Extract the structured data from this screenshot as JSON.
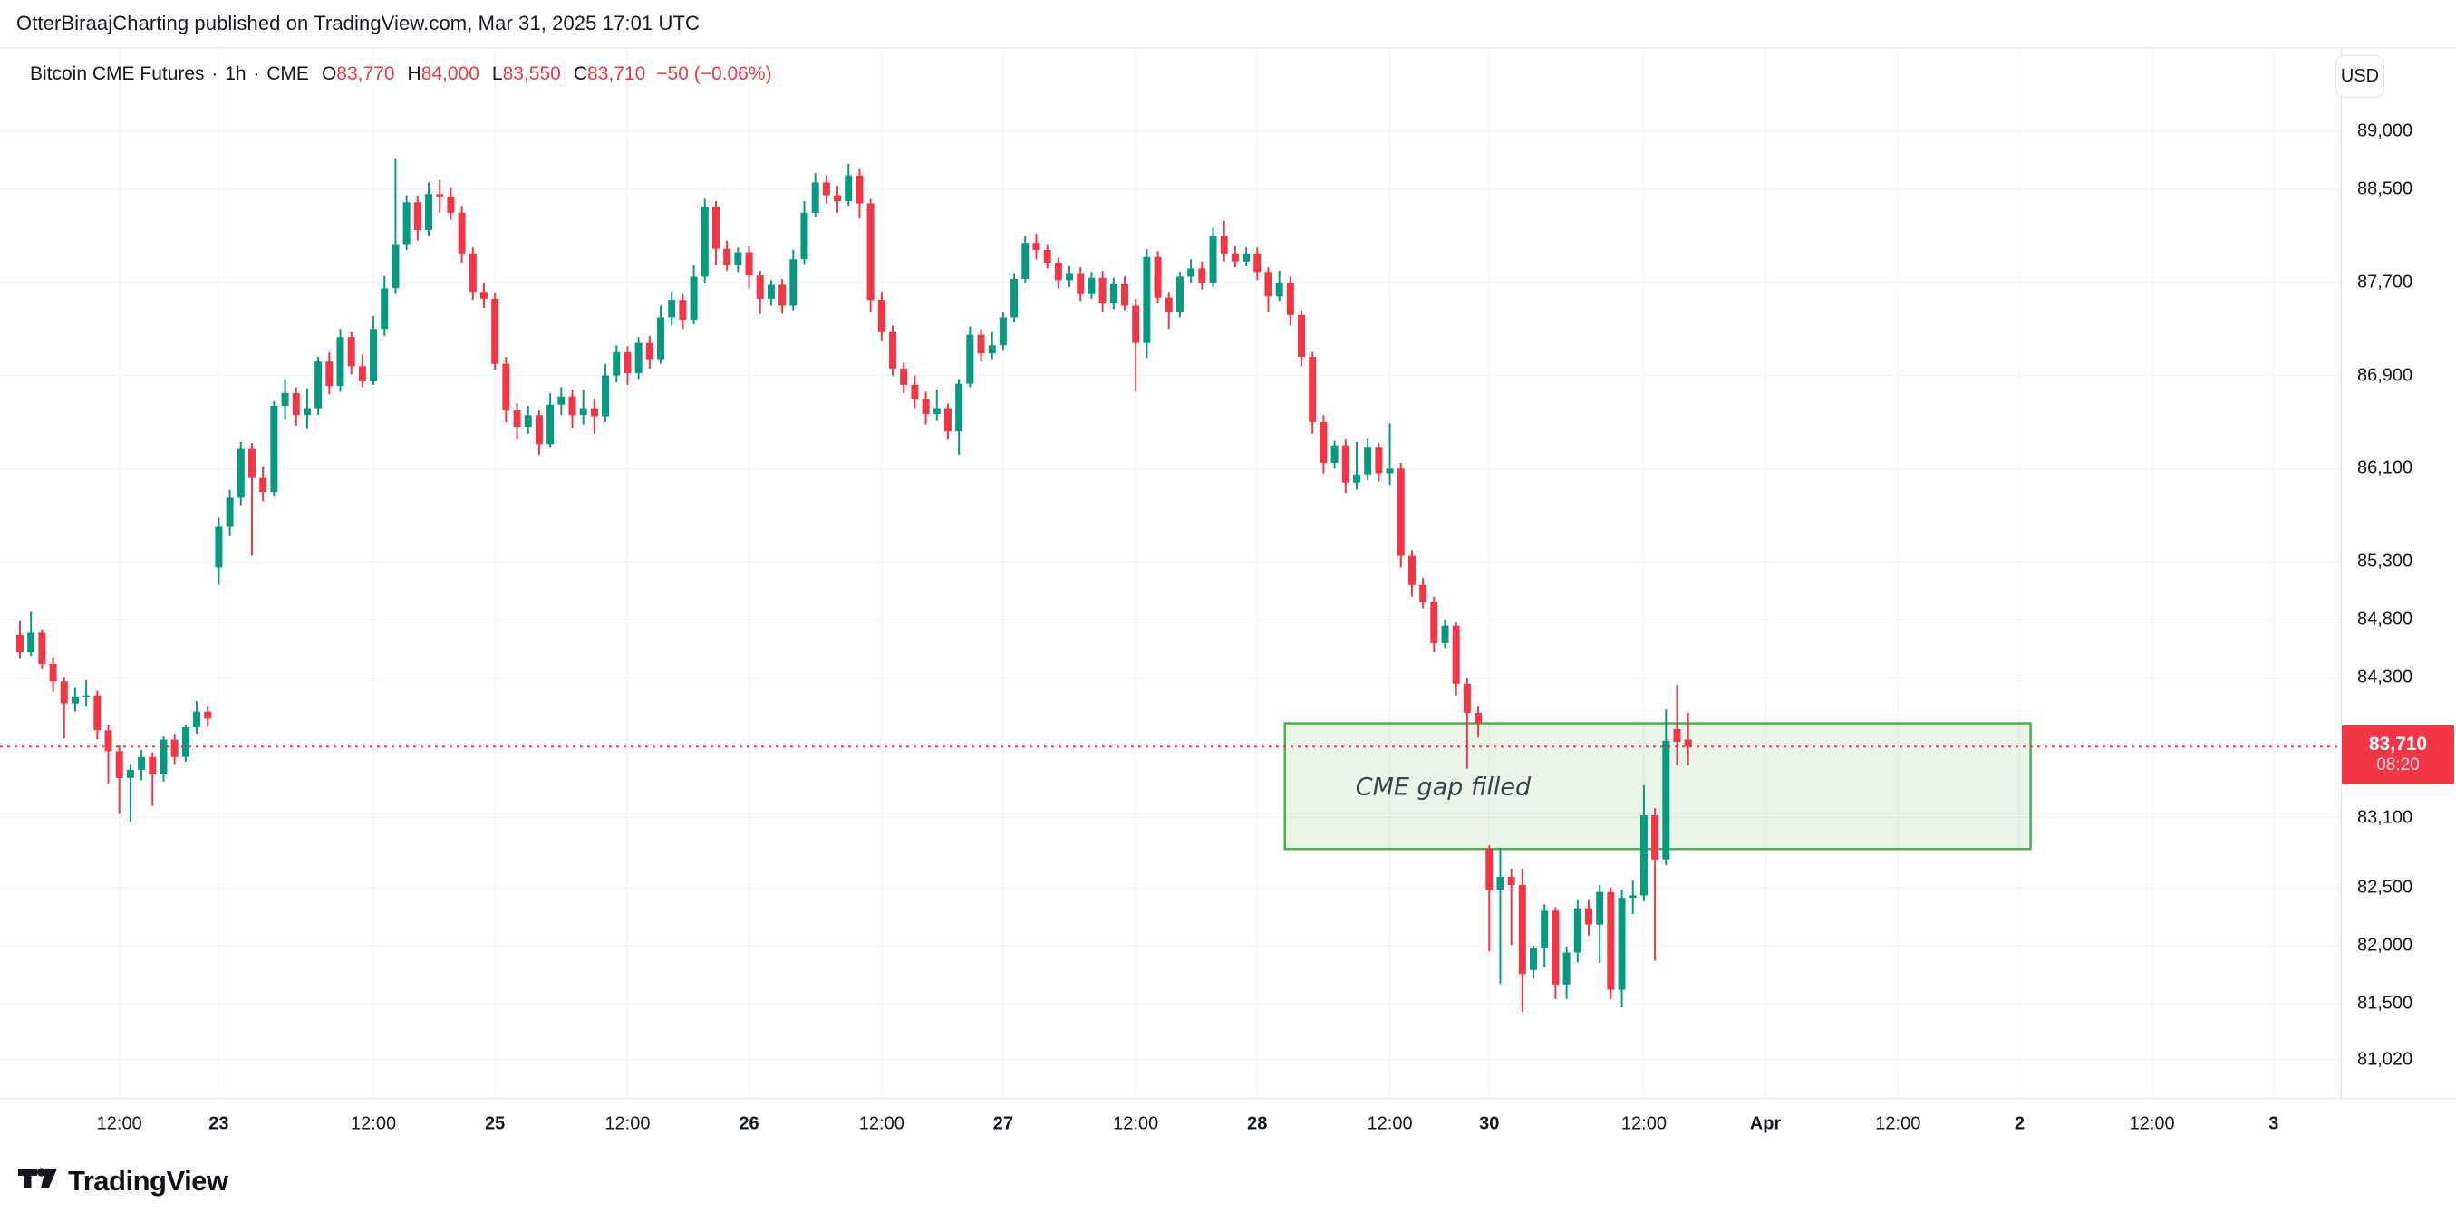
{
  "attribution": "OtterBiraajCharting published on TradingView.com, Mar 31, 2025 17:01 UTC",
  "header": {
    "symbol": "Bitcoin CME Futures",
    "interval": "1h",
    "exchange": "CME",
    "separator": "·",
    "ohlc_labels": {
      "o": "O",
      "h": "H",
      "l": "L",
      "c": "C"
    },
    "ohlc": {
      "o": "83,770",
      "h": "84,000",
      "l": "83,550",
      "c": "83,710"
    },
    "change": "−50 (−0.06%)"
  },
  "currency_button": "USD",
  "price_axis": {
    "last_price_label": "83,710",
    "countdown": "08:20",
    "ticks": [
      {
        "label": "89,000",
        "price": 89000
      },
      {
        "label": "88,500",
        "price": 88500
      },
      {
        "label": "87,700",
        "price": 87700
      },
      {
        "label": "86,900",
        "price": 86900
      },
      {
        "label": "86,100",
        "price": 86100
      },
      {
        "label": "85,300",
        "price": 85300
      },
      {
        "label": "84,800",
        "price": 84800
      },
      {
        "label": "84,300",
        "price": 84300
      },
      {
        "label": "83,100",
        "price": 83100
      },
      {
        "label": "82,500",
        "price": 82500
      },
      {
        "label": "82,000",
        "price": 82000
      },
      {
        "label": "81,500",
        "price": 81500
      },
      {
        "label": "81,020",
        "price": 81020
      }
    ]
  },
  "time_axis": {
    "ticks": [
      {
        "label": "12:00",
        "index": 9,
        "major": false
      },
      {
        "label": "23",
        "index": 18,
        "major": true
      },
      {
        "label": "12:00",
        "index": 32,
        "major": false
      },
      {
        "label": "25",
        "index": 43,
        "major": true
      },
      {
        "label": "12:00",
        "index": 55,
        "major": false
      },
      {
        "label": "26",
        "index": 66,
        "major": true
      },
      {
        "label": "12:00",
        "index": 78,
        "major": false
      },
      {
        "label": "27",
        "index": 89,
        "major": true
      },
      {
        "label": "12:00",
        "index": 101,
        "major": false
      },
      {
        "label": "28",
        "index": 112,
        "major": true
      },
      {
        "label": "12:00",
        "index": 124,
        "major": false
      },
      {
        "label": "30",
        "index": 133,
        "major": true
      },
      {
        "label": "12:00",
        "index": 147,
        "major": false
      },
      {
        "label": "Apr",
        "index": 158,
        "major": true
      },
      {
        "label": "12:00",
        "index": 170,
        "major": false
      },
      {
        "label": "2",
        "index": 181,
        "major": true
      },
      {
        "label": "12:00",
        "index": 193,
        "major": false
      },
      {
        "label": "3",
        "index": 204,
        "major": true
      }
    ]
  },
  "annotation": {
    "text": "CME gap filled",
    "price_top": 83910,
    "price_bottom": 82830,
    "from_index": 114.5,
    "to_index": 182
  },
  "footer": {
    "logo_text": "TradingView"
  },
  "colors": {
    "up": "#089981",
    "down": "#f23645",
    "accent_red": "#f23645",
    "grid": "#f0f2f6",
    "box_border": "#4caf50",
    "box_fill": "rgba(76,175,80,0.13)",
    "text": "#131722"
  },
  "chart_data": {
    "type": "candlestick",
    "title": "Bitcoin CME Futures",
    "timeframe": "1h",
    "exchange": "CME",
    "currency": "USD",
    "last_close": 83710,
    "ylim": [
      80690,
      89716
    ],
    "grid": true,
    "columns": [
      "time",
      "open",
      "high",
      "low",
      "close"
    ],
    "candles": [
      [
        "Mar 21 03:00",
        84670,
        84790,
        84470,
        84520
      ],
      [
        "Mar 21 04:00",
        84520,
        84870,
        84490,
        84690
      ],
      [
        "Mar 21 05:00",
        84690,
        84720,
        84380,
        84420
      ],
      [
        "Mar 21 06:00",
        84420,
        84480,
        84180,
        84270
      ],
      [
        "Mar 21 07:00",
        84270,
        84310,
        83780,
        84080
      ],
      [
        "Mar 21 08:00",
        84080,
        84220,
        84010,
        84140
      ],
      [
        "Mar 21 09:00",
        84140,
        84280,
        84060,
        84150
      ],
      [
        "Mar 21 10:00",
        84150,
        84190,
        83770,
        83850
      ],
      [
        "Mar 21 11:00",
        83850,
        83900,
        83390,
        83670
      ],
      [
        "Mar 21 12:00",
        83670,
        83720,
        83130,
        83440
      ],
      [
        "Mar 21 13:00",
        83440,
        83560,
        83060,
        83510
      ],
      [
        "Mar 21 14:00",
        83510,
        83680,
        83420,
        83620
      ],
      [
        "Mar 21 15:00",
        83620,
        83660,
        83200,
        83470
      ],
      [
        "Mar 21 16:00",
        83470,
        83800,
        83410,
        83770
      ],
      [
        "Mar 21 17:00",
        83770,
        83820,
        83560,
        83620
      ],
      [
        "Mar 21 18:00",
        83620,
        83900,
        83580,
        83875
      ],
      [
        "Mar 21 19:00",
        83875,
        84100,
        83820,
        84010
      ],
      [
        "Mar 21 20:00",
        84010,
        84060,
        83880,
        83950
      ],
      [
        "Mar 23 22:00",
        85250,
        85680,
        85100,
        85600
      ],
      [
        "Mar 23 23:00",
        85600,
        85920,
        85520,
        85850
      ],
      [
        "Mar 24 00:00",
        85850,
        86330,
        85780,
        86270
      ],
      [
        "Mar 24 01:00",
        86270,
        86320,
        85350,
        86020
      ],
      [
        "Mar 24 02:00",
        86020,
        86120,
        85820,
        85900
      ],
      [
        "Mar 24 03:00",
        85900,
        86680,
        85860,
        86640
      ],
      [
        "Mar 24 04:00",
        86640,
        86870,
        86520,
        86750
      ],
      [
        "Mar 24 05:00",
        86750,
        86800,
        86470,
        86560
      ],
      [
        "Mar 24 06:00",
        86560,
        86790,
        86440,
        86620
      ],
      [
        "Mar 24 07:00",
        86620,
        87060,
        86560,
        87020
      ],
      [
        "Mar 24 08:00",
        87020,
        87100,
        86740,
        86810
      ],
      [
        "Mar 24 09:00",
        86810,
        87300,
        86760,
        87230
      ],
      [
        "Mar 24 10:00",
        87230,
        87280,
        86910,
        86980
      ],
      [
        "Mar 24 11:00",
        86980,
        87080,
        86800,
        86850
      ],
      [
        "Mar 24 12:00",
        86850,
        87410,
        86820,
        87300
      ],
      [
        "Mar 24 13:00",
        87300,
        87755,
        87240,
        87650
      ],
      [
        "Mar 24 14:00",
        87650,
        88770,
        87600,
        88030
      ],
      [
        "Mar 24 15:00",
        88030,
        88450,
        87980,
        88390
      ],
      [
        "Mar 24 16:00",
        88390,
        88450,
        88060,
        88150
      ],
      [
        "Mar 24 17:00",
        88150,
        88560,
        88100,
        88460
      ],
      [
        "Mar 24 18:00",
        88460,
        88580,
        88300,
        88440
      ],
      [
        "Mar 24 19:00",
        88440,
        88520,
        88240,
        88300
      ],
      [
        "Mar 24 20:00",
        88300,
        88360,
        87870,
        87950
      ],
      [
        "Mar 24 22:00",
        87950,
        88000,
        87550,
        87620
      ],
      [
        "Mar 24 23:00",
        87620,
        87700,
        87480,
        87560
      ],
      [
        "Mar 25 00:00",
        87560,
        87610,
        86950,
        87000
      ],
      [
        "Mar 25 01:00",
        87000,
        87060,
        86500,
        86600
      ],
      [
        "Mar 25 02:00",
        86600,
        86660,
        86350,
        86460
      ],
      [
        "Mar 25 03:00",
        86460,
        86640,
        86400,
        86560
      ],
      [
        "Mar 25 04:00",
        86560,
        86600,
        86220,
        86310
      ],
      [
        "Mar 25 05:00",
        86310,
        86750,
        86280,
        86650
      ],
      [
        "Mar 25 06:00",
        86650,
        86800,
        86560,
        86720
      ],
      [
        "Mar 25 07:00",
        86720,
        86780,
        86450,
        86560
      ],
      [
        "Mar 25 08:00",
        86560,
        86780,
        86480,
        86620
      ],
      [
        "Mar 25 09:00",
        86620,
        86700,
        86400,
        86550
      ],
      [
        "Mar 25 10:00",
        86550,
        87000,
        86500,
        86900
      ],
      [
        "Mar 25 11:00",
        86900,
        87160,
        86840,
        87100
      ],
      [
        "Mar 25 12:00",
        87100,
        87150,
        86820,
        86920
      ],
      [
        "Mar 25 13:00",
        86920,
        87230,
        86870,
        87180
      ],
      [
        "Mar 25 14:00",
        87180,
        87240,
        86960,
        87040
      ],
      [
        "Mar 25 15:00",
        87040,
        87500,
        87000,
        87400
      ],
      [
        "Mar 25 16:00",
        87400,
        87620,
        87330,
        87550
      ],
      [
        "Mar 25 17:00",
        87550,
        87600,
        87300,
        87380
      ],
      [
        "Mar 25 18:00",
        87380,
        87850,
        87340,
        87750
      ],
      [
        "Mar 25 19:00",
        87750,
        88420,
        87700,
        88350
      ],
      [
        "Mar 25 20:00",
        88350,
        88400,
        87850,
        87990
      ],
      [
        "Mar 25 22:00",
        87990,
        88060,
        87800,
        87850
      ],
      [
        "Mar 25 23:00",
        87850,
        88000,
        87790,
        87960
      ],
      [
        "Mar 26 00:00",
        87960,
        88010,
        87650,
        87760
      ],
      [
        "Mar 26 01:00",
        87760,
        87800,
        87430,
        87560
      ],
      [
        "Mar 26 02:00",
        87560,
        87720,
        87500,
        87680
      ],
      [
        "Mar 26 03:00",
        87680,
        87730,
        87430,
        87500
      ],
      [
        "Mar 26 04:00",
        87500,
        87980,
        87460,
        87900
      ],
      [
        "Mar 26 05:00",
        87900,
        88400,
        87860,
        88300
      ],
      [
        "Mar 26 06:00",
        88300,
        88640,
        88260,
        88560
      ],
      [
        "Mar 26 07:00",
        88560,
        88620,
        88380,
        88450
      ],
      [
        "Mar 26 08:00",
        88450,
        88530,
        88300,
        88400
      ],
      [
        "Mar 26 09:00",
        88400,
        88720,
        88360,
        88620
      ],
      [
        "Mar 26 10:00",
        88620,
        88675,
        88250,
        88380
      ],
      [
        "Mar 26 11:00",
        88380,
        88420,
        87450,
        87550
      ],
      [
        "Mar 26 12:00",
        87550,
        87620,
        87200,
        87280
      ],
      [
        "Mar 26 13:00",
        87280,
        87330,
        86900,
        86960
      ],
      [
        "Mar 26 14:00",
        86960,
        87010,
        86750,
        86820
      ],
      [
        "Mar 26 15:00",
        86820,
        86900,
        86620,
        86700
      ],
      [
        "Mar 26 16:00",
        86700,
        86760,
        86480,
        86570
      ],
      [
        "Mar 26 17:00",
        86570,
        86780,
        86510,
        86620
      ],
      [
        "Mar 26 18:00",
        86620,
        86660,
        86350,
        86420
      ],
      [
        "Mar 26 19:00",
        86420,
        86870,
        86220,
        86830
      ],
      [
        "Mar 26 20:00",
        86830,
        87320,
        86800,
        87250
      ],
      [
        "Mar 26 22:00",
        87250,
        87300,
        87020,
        87090
      ],
      [
        "Mar 26 23:00",
        87090,
        87280,
        87040,
        87160
      ],
      [
        "Mar 27 00:00",
        87160,
        87450,
        87120,
        87400
      ],
      [
        "Mar 27 01:00",
        87400,
        87780,
        87360,
        87730
      ],
      [
        "Mar 27 02:00",
        87730,
        88100,
        87700,
        88040
      ],
      [
        "Mar 27 03:00",
        88040,
        88120,
        87900,
        87980
      ],
      [
        "Mar 27 04:00",
        87980,
        88030,
        87820,
        87870
      ],
      [
        "Mar 27 05:00",
        87870,
        87910,
        87650,
        87720
      ],
      [
        "Mar 27 06:00",
        87720,
        87840,
        87660,
        87780
      ],
      [
        "Mar 27 07:00",
        87780,
        87830,
        87540,
        87600
      ],
      [
        "Mar 27 08:00",
        87600,
        87790,
        87560,
        87740
      ],
      [
        "Mar 27 09:00",
        87740,
        87800,
        87450,
        87520
      ],
      [
        "Mar 27 10:00",
        87520,
        87740,
        87470,
        87690
      ],
      [
        "Mar 27 11:00",
        87690,
        87750,
        87460,
        87500
      ],
      [
        "Mar 27 12:00",
        87500,
        87560,
        86760,
        87180
      ],
      [
        "Mar 27 13:00",
        87180,
        87990,
        87050,
        87920
      ],
      [
        "Mar 27 14:00",
        87920,
        87970,
        87520,
        87570
      ],
      [
        "Mar 27 15:00",
        87570,
        87620,
        87300,
        87450
      ],
      [
        "Mar 27 16:00",
        87450,
        87790,
        87400,
        87750
      ],
      [
        "Mar 27 17:00",
        87750,
        87900,
        87700,
        87820
      ],
      [
        "Mar 27 18:00",
        87820,
        87880,
        87640,
        87700
      ],
      [
        "Mar 27 19:00",
        87700,
        88170,
        87660,
        88100
      ],
      [
        "Mar 27 20:00",
        88100,
        88230,
        87880,
        87950
      ],
      [
        "Mar 27 22:00",
        87950,
        88010,
        87830,
        87880
      ],
      [
        "Mar 27 23:00",
        87880,
        88000,
        87840,
        87950
      ],
      [
        "Mar 28 00:00",
        87950,
        88000,
        87720,
        87790
      ],
      [
        "Mar 28 01:00",
        87790,
        87830,
        87450,
        87580
      ],
      [
        "Mar 28 02:00",
        87580,
        87800,
        87540,
        87700
      ],
      [
        "Mar 28 03:00",
        87700,
        87750,
        87330,
        87420
      ],
      [
        "Mar 28 04:00",
        87420,
        87460,
        86980,
        87060
      ],
      [
        "Mar 28 05:00",
        87060,
        87100,
        86400,
        86500
      ],
      [
        "Mar 28 06:00",
        86500,
        86560,
        86060,
        86150
      ],
      [
        "Mar 28 07:00",
        86150,
        86340,
        86100,
        86300
      ],
      [
        "Mar 28 08:00",
        86300,
        86350,
        85890,
        85980
      ],
      [
        "Mar 28 09:00",
        85980,
        86330,
        85920,
        86050
      ],
      [
        "Mar 28 10:00",
        86050,
        86360,
        86000,
        86280
      ],
      [
        "Mar 28 11:00",
        86280,
        86320,
        85990,
        86060
      ],
      [
        "Mar 28 12:00",
        86060,
        86490,
        85960,
        86100
      ],
      [
        "Mar 28 13:00",
        86100,
        86150,
        85250,
        85350
      ],
      [
        "Mar 28 14:00",
        85350,
        85400,
        85000,
        85100
      ],
      [
        "Mar 28 15:00",
        85100,
        85160,
        84900,
        84950
      ],
      [
        "Mar 28 16:00",
        84950,
        85000,
        84520,
        84600
      ],
      [
        "Mar 28 17:00",
        84600,
        84800,
        84560,
        84750
      ],
      [
        "Mar 28 18:00",
        84750,
        84780,
        84150,
        84250
      ],
      [
        "Mar 28 19:00",
        84250,
        84300,
        83520,
        84000
      ],
      [
        "Mar 28 20:00",
        84000,
        84060,
        83790,
        83910
      ],
      [
        "Mar 30 22:00",
        82830,
        82860,
        81950,
        82480
      ],
      [
        "Mar 30 23:00",
        82480,
        82840,
        81670,
        82590
      ],
      [
        "Mar 31 00:00",
        82590,
        82660,
        82005,
        82520
      ],
      [
        "Mar 31 01:00",
        82520,
        82660,
        81430,
        81755
      ],
      [
        "Mar 31 02:00",
        81790,
        82000,
        81715,
        81975
      ],
      [
        "Mar 31 03:00",
        81975,
        82355,
        81810,
        82300
      ],
      [
        "Mar 31 04:00",
        82300,
        82330,
        81540,
        81665
      ],
      [
        "Mar 31 05:00",
        81665,
        81990,
        81540,
        81940
      ],
      [
        "Mar 31 06:00",
        81940,
        82390,
        81855,
        82320
      ],
      [
        "Mar 31 07:00",
        82320,
        82390,
        82085,
        82180
      ],
      [
        "Mar 31 08:00",
        82180,
        82520,
        81850,
        82460
      ],
      [
        "Mar 31 09:00",
        82460,
        82500,
        81540,
        81620
      ],
      [
        "Mar 31 10:00",
        81620,
        82480,
        81470,
        82410
      ],
      [
        "Mar 31 11:00",
        82410,
        82560,
        82270,
        82430
      ],
      [
        "Mar 31 12:00",
        82430,
        83380,
        82380,
        83120
      ],
      [
        "Mar 31 13:00",
        83120,
        83180,
        81870,
        82740
      ],
      [
        "Mar 31 14:00",
        82740,
        84030,
        82690,
        83760
      ],
      [
        "Mar 31 15:00",
        83860,
        84240,
        83550,
        83750
      ],
      [
        "Mar 31 16:00",
        83770,
        84000,
        83550,
        83710
      ]
    ]
  }
}
